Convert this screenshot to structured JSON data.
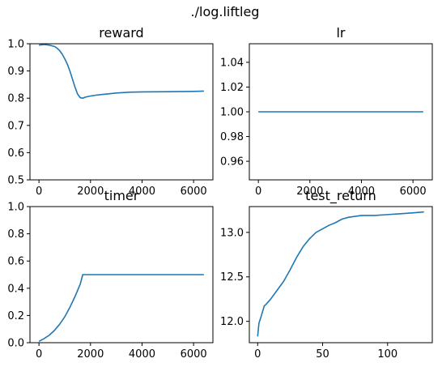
{
  "figure": {
    "suptitle": "./log.liftleg"
  },
  "chart_data": [
    {
      "name": "reward",
      "type": "line",
      "title": "reward",
      "xlim": [
        -350,
        6750
      ],
      "ylim": [
        0.5,
        1.0
      ],
      "xticks": [
        0,
        2000,
        4000,
        6000
      ],
      "xtick_labels": [
        "0",
        "2000",
        "4000",
        "6000"
      ],
      "yticks": [
        0.5,
        0.6,
        0.7,
        0.8,
        0.9,
        1.0
      ],
      "ytick_labels": [
        "0.5",
        "0.6",
        "0.7",
        "0.8",
        "0.9",
        "1.0"
      ],
      "grid": false,
      "series": [
        {
          "color": "#1f77b4",
          "x": [
            0,
            200,
            400,
            600,
            700,
            800,
            900,
            1000,
            1100,
            1200,
            1300,
            1400,
            1500,
            1600,
            1700,
            1800,
            2000,
            2200,
            2600,
            3000,
            3500,
            4000,
            5000,
            6000,
            6400
          ],
          "y": [
            0.995,
            0.997,
            0.995,
            0.99,
            0.984,
            0.975,
            0.962,
            0.945,
            0.925,
            0.9,
            0.87,
            0.84,
            0.815,
            0.802,
            0.8,
            0.804,
            0.808,
            0.811,
            0.815,
            0.819,
            0.822,
            0.823,
            0.824,
            0.825,
            0.826
          ]
        }
      ]
    },
    {
      "name": "lr",
      "type": "line",
      "title": "lr",
      "xlim": [
        -350,
        6750
      ],
      "ylim": [
        0.945,
        1.055
      ],
      "xticks": [
        0,
        2000,
        4000,
        6000
      ],
      "xtick_labels": [
        "0",
        "2000",
        "4000",
        "6000"
      ],
      "yticks": [
        0.96,
        0.98,
        1.0,
        1.02,
        1.04
      ],
      "ytick_labels": [
        "0.96",
        "0.98",
        "1.00",
        "1.02",
        "1.04"
      ],
      "grid": false,
      "series": [
        {
          "color": "#1f77b4",
          "x": [
            0,
            6400
          ],
          "y": [
            1.0,
            1.0
          ]
        }
      ]
    },
    {
      "name": "timer",
      "type": "line",
      "title": "timer",
      "xlim": [
        -350,
        6750
      ],
      "ylim": [
        0.0,
        1.0
      ],
      "xticks": [
        0,
        2000,
        4000,
        6000
      ],
      "xtick_labels": [
        "0",
        "2000",
        "4000",
        "6000"
      ],
      "yticks": [
        0.0,
        0.2,
        0.4,
        0.6,
        0.8,
        1.0
      ],
      "ytick_labels": [
        "0.0",
        "0.2",
        "0.4",
        "0.6",
        "0.8",
        "1.0"
      ],
      "grid": false,
      "series": [
        {
          "color": "#1f77b4",
          "x": [
            0,
            200,
            400,
            600,
            800,
            1000,
            1200,
            1400,
            1600,
            1700,
            2000,
            3000,
            4000,
            5000,
            6400
          ],
          "y": [
            0.01,
            0.03,
            0.055,
            0.09,
            0.135,
            0.19,
            0.26,
            0.34,
            0.43,
            0.5,
            0.5,
            0.5,
            0.5,
            0.5,
            0.5
          ]
        }
      ]
    },
    {
      "name": "test_return",
      "type": "line",
      "title": "test_return",
      "xlim": [
        -6.4,
        134.4
      ],
      "ylim": [
        11.76,
        13.29
      ],
      "xticks": [
        0,
        50,
        100
      ],
      "xtick_labels": [
        "0",
        "50",
        "100"
      ],
      "yticks": [
        12.0,
        12.5,
        13.0
      ],
      "ytick_labels": [
        "12.0",
        "12.5",
        "13.0"
      ],
      "grid": false,
      "series": [
        {
          "color": "#1f77b4",
          "x": [
            0,
            1,
            3,
            5,
            7,
            10,
            15,
            20,
            25,
            30,
            35,
            40,
            45,
            50,
            55,
            60,
            65,
            70,
            75,
            80,
            90,
            100,
            110,
            120,
            128
          ],
          "y": [
            11.83,
            11.98,
            12.07,
            12.17,
            12.2,
            12.25,
            12.35,
            12.45,
            12.58,
            12.72,
            12.84,
            12.93,
            13.0,
            13.04,
            13.08,
            13.11,
            13.15,
            13.17,
            13.18,
            13.19,
            13.19,
            13.2,
            13.21,
            13.22,
            13.23
          ]
        }
      ]
    }
  ]
}
